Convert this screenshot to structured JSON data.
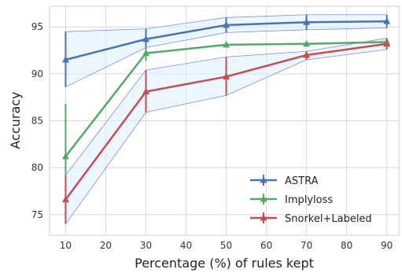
{
  "chart_data": {
    "type": "line",
    "title": "",
    "xlabel": "Percentage (%) of rules kept",
    "ylabel": "Accuracy",
    "xlim": [
      6,
      93
    ],
    "ylim": [
      72.8,
      97.2
    ],
    "xticks": [
      10,
      20,
      30,
      40,
      50,
      60,
      70,
      80,
      90
    ],
    "yticks": [
      75,
      80,
      85,
      90,
      95
    ],
    "grid": true,
    "legend_position": "bottom-right",
    "x": [
      10,
      30,
      50,
      70,
      90
    ],
    "series": [
      {
        "name": "ASTRA",
        "color": "#4c72b0",
        "values": [
          91.5,
          93.7,
          95.2,
          95.5,
          95.6
        ],
        "lower": [
          88.6,
          92.8,
          94.4,
          94.7,
          94.9
        ],
        "upper": [
          94.5,
          94.8,
          96.0,
          96.3,
          96.3
        ],
        "band": true
      },
      {
        "name": "Implyloss",
        "color": "#55a868",
        "values": [
          81.2,
          92.2,
          93.1,
          93.2,
          93.4
        ],
        "lower": [
          79.2,
          91.4,
          92.8,
          92.9,
          93.1
        ],
        "upper": [
          86.8,
          92.9,
          93.4,
          93.5,
          93.7
        ],
        "band": false
      },
      {
        "name": "Snorkel+Labeled",
        "color": "#c44e52",
        "values": [
          76.6,
          88.1,
          89.7,
          92.0,
          93.2
        ],
        "lower": [
          74.0,
          85.9,
          87.7,
          91.5,
          92.6
        ],
        "upper": [
          79.2,
          90.4,
          91.8,
          92.4,
          93.8
        ],
        "band": true
      }
    ]
  }
}
